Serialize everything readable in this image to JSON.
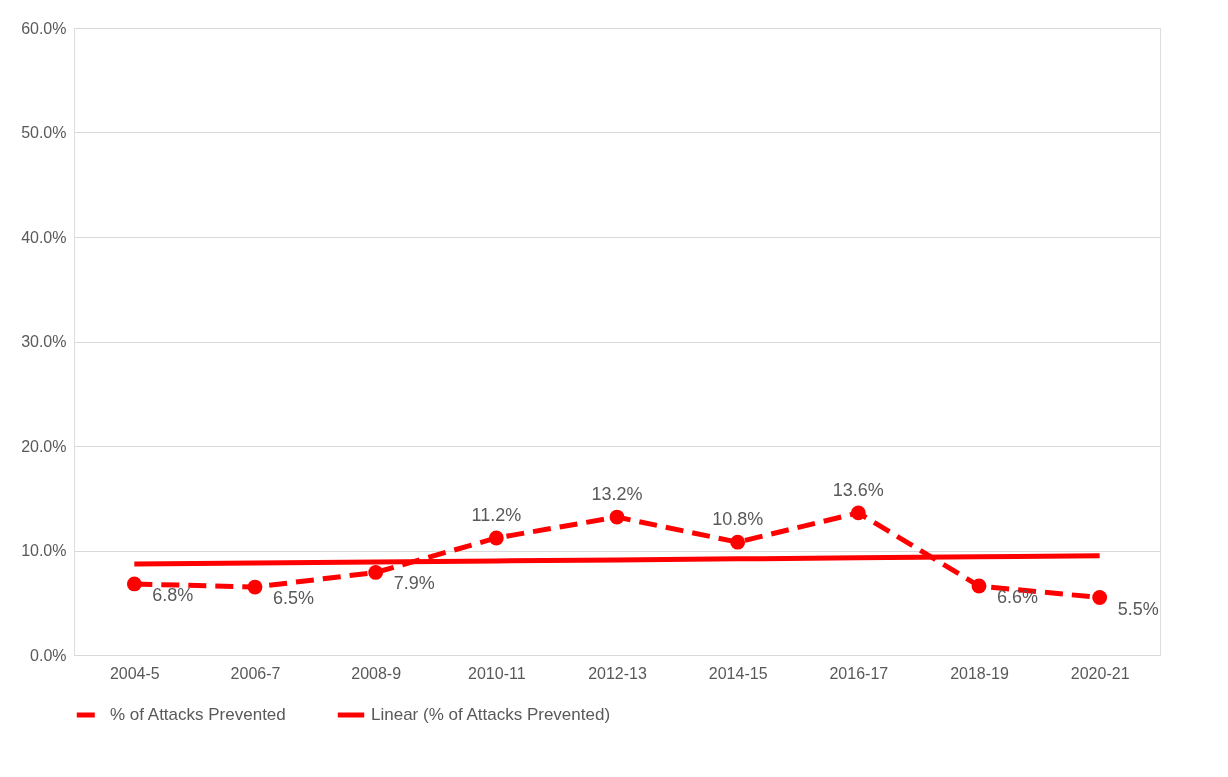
{
  "chart_data": {
    "type": "line",
    "categories": [
      "2004-5",
      "2006-7",
      "2008-9",
      "2010-11",
      "2012-13",
      "2014-15",
      "2016-17",
      "2018-19",
      "2020-21"
    ],
    "series": [
      {
        "name": "% of Attacks Prevented",
        "color": "#ff0000",
        "values": [
          6.8,
          6.5,
          7.9,
          11.2,
          13.2,
          10.8,
          13.6,
          6.6,
          5.5
        ],
        "marker": "circle",
        "line_style": "dashed",
        "value_labels": [
          "6.8%",
          "6.5%",
          "7.9%",
          "11.2%",
          "13.2%",
          "10.8%",
          "13.6%",
          "6.6%",
          "5.5%"
        ]
      },
      {
        "name": "Linear (% of Attacks Prevented)",
        "color": "#ff0000",
        "values": [
          8.7,
          8.8,
          8.9,
          9.0,
          9.1,
          9.2,
          9.3,
          9.4,
          9.5
        ],
        "marker": "none",
        "line_style": "solid"
      }
    ],
    "ylim": [
      0,
      60
    ],
    "yticks": [
      {
        "value": 0,
        "label": "0.0%"
      },
      {
        "value": 10,
        "label": "10.0%"
      },
      {
        "value": 20,
        "label": "20.0%"
      },
      {
        "value": 30,
        "label": "30.0%"
      },
      {
        "value": 40,
        "label": "40.0%"
      },
      {
        "value": 50,
        "label": "50.0%"
      },
      {
        "value": 60,
        "label": "60.0%"
      }
    ],
    "grid": "y",
    "legend": "bottom"
  }
}
